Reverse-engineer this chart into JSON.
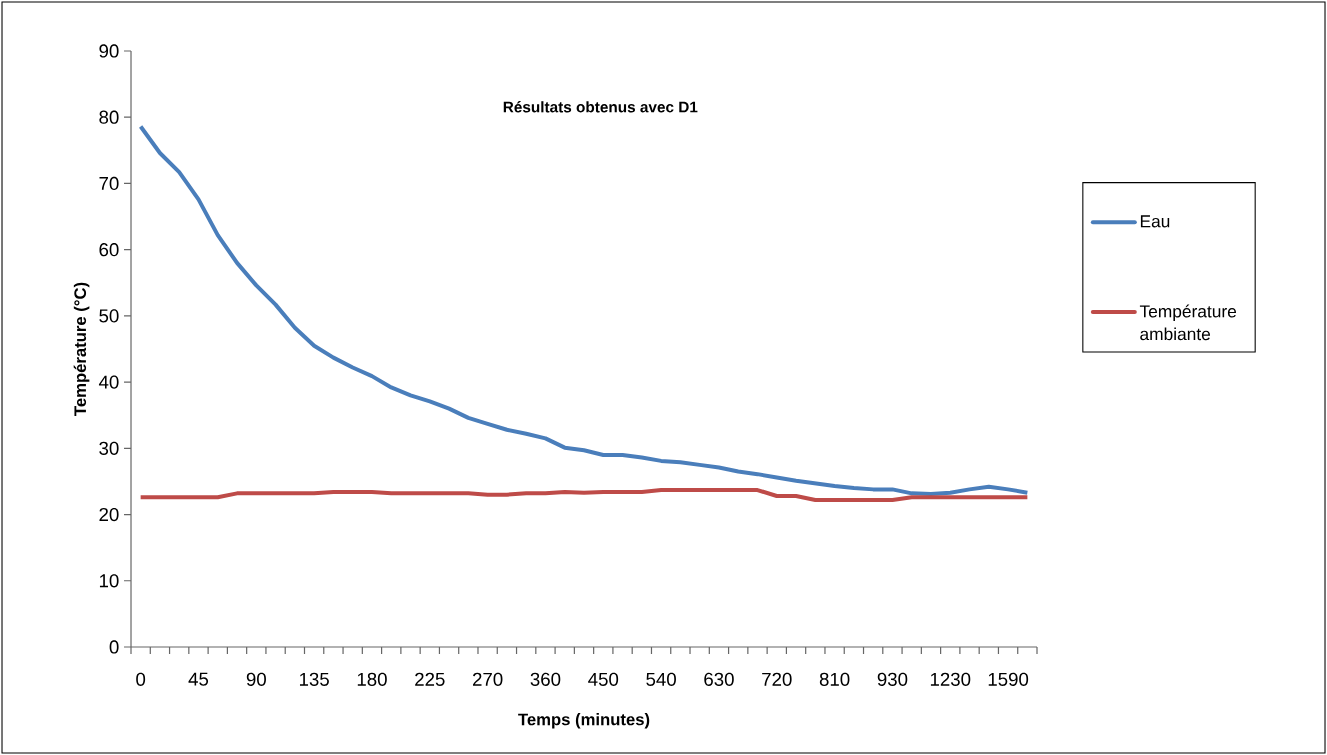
{
  "chart_data": {
    "type": "line",
    "title": "Résultats obtenus avec D1",
    "xlabel": "Temps (minutes)",
    "ylabel": "Température (°C)",
    "categories": [
      "0",
      null,
      null,
      "45",
      null,
      null,
      "90",
      null,
      null,
      "135",
      null,
      null,
      "180",
      null,
      null,
      "225",
      null,
      null,
      "270",
      null,
      null,
      "360",
      null,
      null,
      "450",
      null,
      null,
      "540",
      null,
      null,
      "630",
      null,
      null,
      "720",
      null,
      null,
      "810",
      null,
      null,
      "930",
      null,
      null,
      "1230",
      null,
      null,
      "1590",
      null
    ],
    "series": [
      {
        "name": "Eau",
        "color": "#4a7ebb",
        "values": [
          78.6,
          74.6,
          71.7,
          67.6,
          62.2,
          58.0,
          54.6,
          51.7,
          48.2,
          45.5,
          43.7,
          42.2,
          40.9,
          39.2,
          38.0,
          37.1,
          36.0,
          34.6,
          33.7,
          32.8,
          32.2,
          31.5,
          30.1,
          29.7,
          29.0,
          29.0,
          28.6,
          28.1,
          27.9,
          27.5,
          27.1,
          26.5,
          26.1,
          25.6,
          25.1,
          24.7,
          24.3,
          24.0,
          23.8,
          23.8,
          23.2,
          23.1,
          23.3,
          23.8,
          24.2,
          23.8,
          23.3
        ]
      },
      {
        "name": "Température ambiante",
        "color": "#be4b48",
        "values": [
          22.6,
          22.6,
          22.6,
          22.6,
          22.6,
          23.2,
          23.2,
          23.2,
          23.2,
          23.2,
          23.4,
          23.4,
          23.4,
          23.2,
          23.2,
          23.2,
          23.2,
          23.2,
          23.0,
          23.0,
          23.2,
          23.2,
          23.4,
          23.3,
          23.4,
          23.4,
          23.4,
          23.7,
          23.7,
          23.7,
          23.7,
          23.7,
          23.7,
          22.8,
          22.8,
          22.2,
          22.2,
          22.2,
          22.2,
          22.2,
          22.6,
          22.6,
          22.6,
          22.6,
          22.6,
          22.6,
          22.6
        ]
      }
    ],
    "ylim": [
      0,
      90
    ],
    "yticks": [
      0,
      10,
      20,
      30,
      40,
      50,
      60,
      70,
      80,
      90
    ],
    "grid": false,
    "legend": "right",
    "marker": "none",
    "line_style": "solid"
  }
}
